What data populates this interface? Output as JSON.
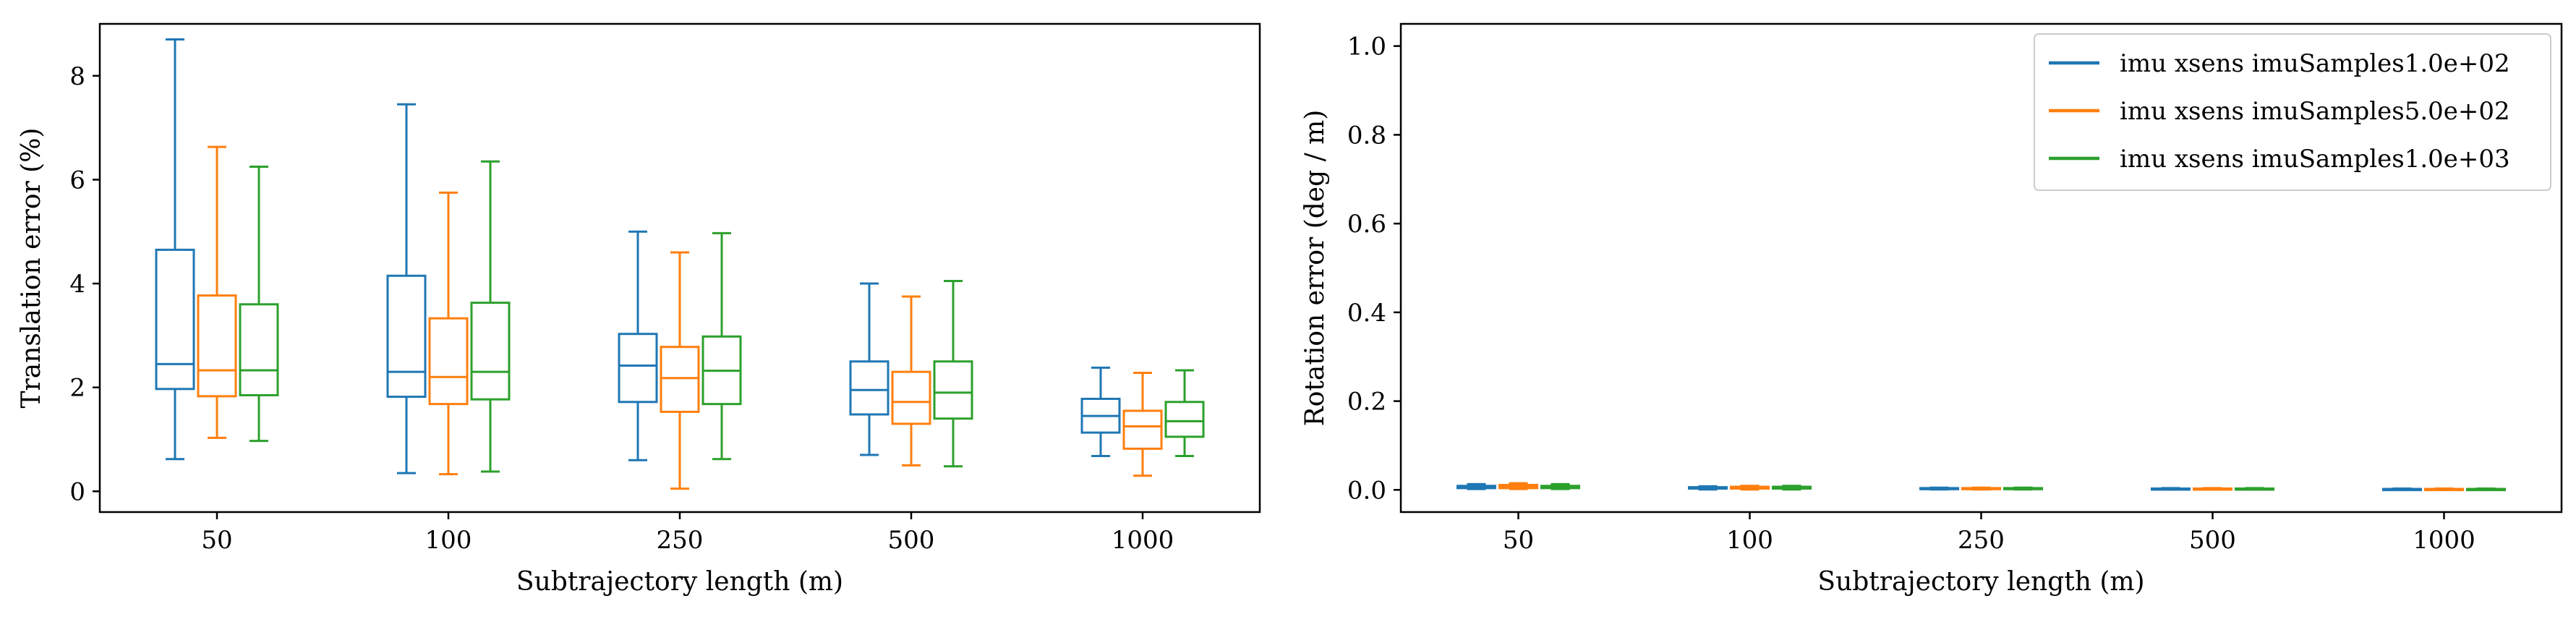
{
  "chart_data": [
    {
      "type": "box",
      "xlabel": "Subtrajectory length (m)",
      "ylabel": "Translation error (%)",
      "categories": [
        "50",
        "100",
        "250",
        "500",
        "1000"
      ],
      "ylim": [
        -0.4,
        9.0
      ],
      "yticks": [
        0,
        2,
        4,
        6,
        8
      ],
      "yticklabels": [
        "0",
        "2",
        "4",
        "6",
        "8"
      ],
      "grid": false,
      "series": [
        {
          "name": "imu xsens imuSamples1.0e+02",
          "color": "#1f77b4",
          "boxes": [
            {
              "whislo": 0.62,
              "q1": 1.97,
              "med": 2.45,
              "q3": 4.65,
              "whishi": 8.7
            },
            {
              "whislo": 0.35,
              "q1": 1.82,
              "med": 2.3,
              "q3": 4.15,
              "whishi": 7.45
            },
            {
              "whislo": 0.6,
              "q1": 1.72,
              "med": 2.42,
              "q3": 3.03,
              "whishi": 5.0
            },
            {
              "whislo": 0.7,
              "q1": 1.48,
              "med": 1.95,
              "q3": 2.5,
              "whishi": 4.0
            },
            {
              "whislo": 0.68,
              "q1": 1.13,
              "med": 1.45,
              "q3": 1.78,
              "whishi": 2.38
            }
          ]
        },
        {
          "name": "imu xsens imuSamples5.0e+02",
          "color": "#ff7f0e",
          "boxes": [
            {
              "whislo": 1.03,
              "q1": 1.83,
              "med": 2.33,
              "q3": 3.77,
              "whishi": 6.63
            },
            {
              "whislo": 0.33,
              "q1": 1.68,
              "med": 2.2,
              "q3": 3.33,
              "whishi": 5.75
            },
            {
              "whislo": 0.05,
              "q1": 1.53,
              "med": 2.18,
              "q3": 2.78,
              "whishi": 4.6
            },
            {
              "whislo": 0.5,
              "q1": 1.3,
              "med": 1.72,
              "q3": 2.3,
              "whishi": 3.75
            },
            {
              "whislo": 0.3,
              "q1": 0.82,
              "med": 1.25,
              "q3": 1.55,
              "whishi": 2.28
            }
          ]
        },
        {
          "name": "imu xsens imuSamples1.0e+03",
          "color": "#2ca02c",
          "boxes": [
            {
              "whislo": 0.97,
              "q1": 1.85,
              "med": 2.33,
              "q3": 3.6,
              "whishi": 6.25
            },
            {
              "whislo": 0.38,
              "q1": 1.77,
              "med": 2.3,
              "q3": 3.63,
              "whishi": 6.35
            },
            {
              "whislo": 0.62,
              "q1": 1.68,
              "med": 2.32,
              "q3": 2.98,
              "whishi": 4.97
            },
            {
              "whislo": 0.48,
              "q1": 1.4,
              "med": 1.9,
              "q3": 2.5,
              "whishi": 4.05
            },
            {
              "whislo": 0.68,
              "q1": 1.05,
              "med": 1.35,
              "q3": 1.72,
              "whishi": 2.33
            }
          ]
        }
      ]
    },
    {
      "type": "box",
      "xlabel": "Subtrajectory length (m)",
      "ylabel": "Rotation error (deg / m)",
      "categories": [
        "50",
        "100",
        "250",
        "500",
        "1000"
      ],
      "ylim": [
        -0.05,
        1.05
      ],
      "yticks": [
        0,
        0.2,
        0.4,
        0.6,
        0.8,
        1.0
      ],
      "yticklabels": [
        "0.0",
        "0.2",
        "0.4",
        "0.6",
        "0.8",
        "1.0"
      ],
      "grid": false,
      "legend": {
        "position": "upper-right",
        "entries": [
          "imu xsens imuSamples1.0e+02",
          "imu xsens imuSamples5.0e+02",
          "imu xsens imuSamples1.0e+03"
        ]
      },
      "series": [
        {
          "name": "imu xsens imuSamples1.0e+02",
          "color": "#1f77b4",
          "boxes": [
            {
              "whislo": 0.002,
              "q1": 0.004,
              "med": 0.006,
              "q3": 0.009,
              "whishi": 0.013
            },
            {
              "whislo": 0.001,
              "q1": 0.003,
              "med": 0.004,
              "q3": 0.006,
              "whishi": 0.008
            },
            {
              "whislo": 0.001,
              "q1": 0.002,
              "med": 0.003,
              "q3": 0.004,
              "whishi": 0.005
            },
            {
              "whislo": 0.001,
              "q1": 0.002,
              "med": 0.002,
              "q3": 0.003,
              "whishi": 0.004
            },
            {
              "whislo": 0.001,
              "q1": 0.001,
              "med": 0.002,
              "q3": 0.002,
              "whishi": 0.003
            }
          ]
        },
        {
          "name": "imu xsens imuSamples5.0e+02",
          "color": "#ff7f0e",
          "boxes": [
            {
              "whislo": 0.002,
              "q1": 0.004,
              "med": 0.007,
              "q3": 0.011,
              "whishi": 0.015
            },
            {
              "whislo": 0.001,
              "q1": 0.003,
              "med": 0.005,
              "q3": 0.007,
              "whishi": 0.009
            },
            {
              "whislo": 0.001,
              "q1": 0.002,
              "med": 0.003,
              "q3": 0.004,
              "whishi": 0.005
            },
            {
              "whislo": 0.001,
              "q1": 0.002,
              "med": 0.002,
              "q3": 0.003,
              "whishi": 0.004
            },
            {
              "whislo": 0.001,
              "q1": 0.001,
              "med": 0.002,
              "q3": 0.002,
              "whishi": 0.003
            }
          ]
        },
        {
          "name": "imu xsens imuSamples1.0e+03",
          "color": "#2ca02c",
          "boxes": [
            {
              "whislo": 0.002,
              "q1": 0.004,
              "med": 0.006,
              "q3": 0.009,
              "whishi": 0.013
            },
            {
              "whislo": 0.001,
              "q1": 0.003,
              "med": 0.005,
              "q3": 0.007,
              "whishi": 0.009
            },
            {
              "whislo": 0.001,
              "q1": 0.002,
              "med": 0.003,
              "q3": 0.004,
              "whishi": 0.005
            },
            {
              "whislo": 0.001,
              "q1": 0.002,
              "med": 0.002,
              "q3": 0.003,
              "whishi": 0.004
            },
            {
              "whislo": 0.001,
              "q1": 0.001,
              "med": 0.002,
              "q3": 0.002,
              "whishi": 0.003
            }
          ]
        }
      ]
    }
  ]
}
